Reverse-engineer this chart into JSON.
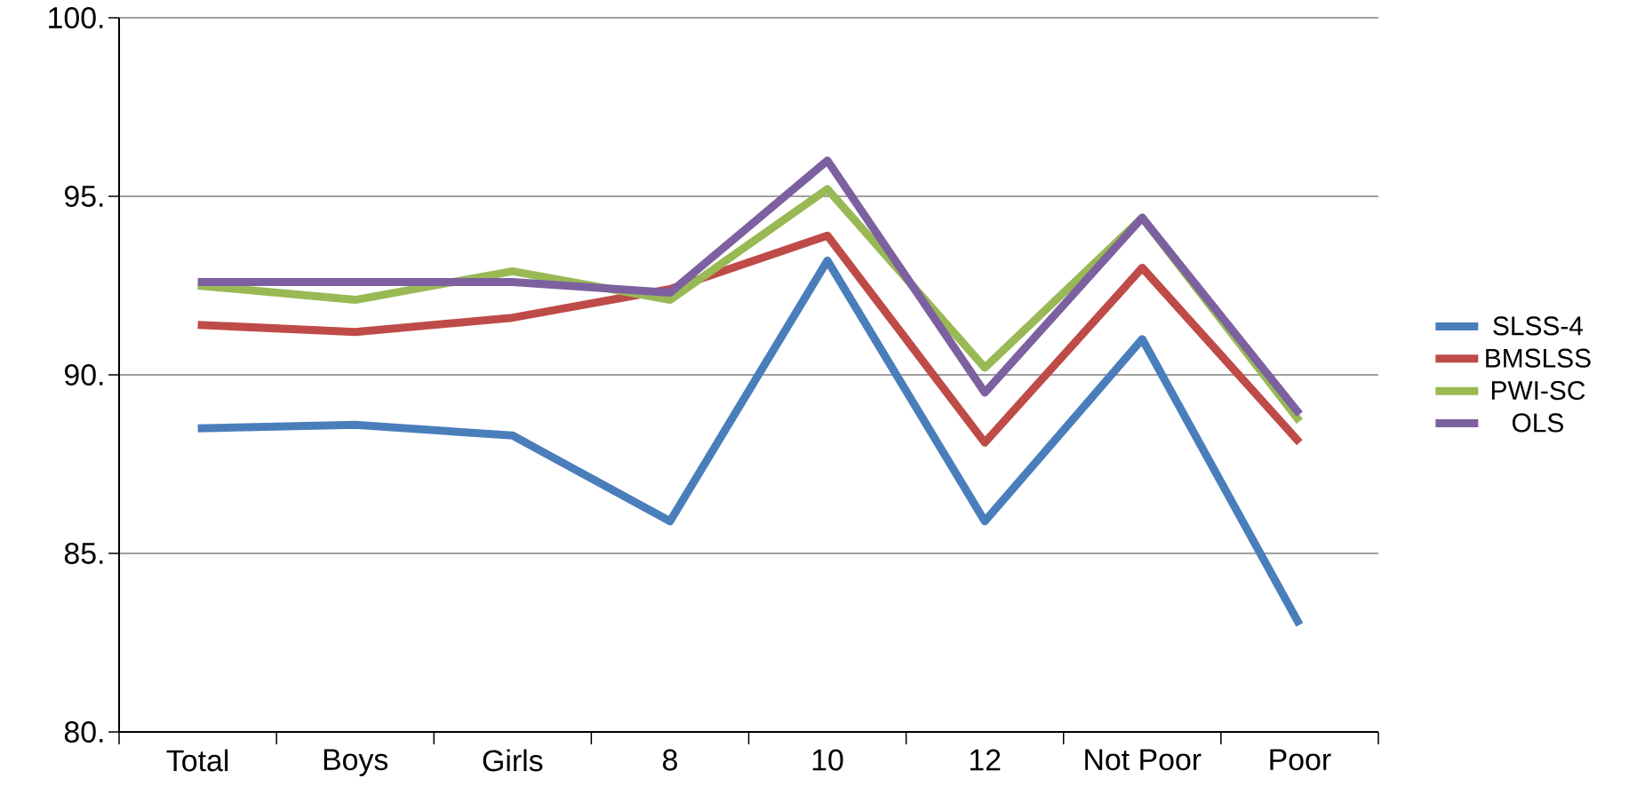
{
  "chart_data": {
    "type": "line",
    "categories": [
      "Total",
      "Boys",
      "Girls",
      "8",
      "10",
      "12",
      "Not Poor",
      "Poor"
    ],
    "series": [
      {
        "name": "SLSS-4",
        "color": "#4a7ebb",
        "values": [
          88.5,
          88.6,
          88.3,
          85.9,
          93.2,
          85.9,
          91.0,
          83.0
        ]
      },
      {
        "name": "BMSLSS",
        "color": "#be4b48",
        "values": [
          91.4,
          91.2,
          91.6,
          92.4,
          93.9,
          88.1,
          93.0,
          88.1
        ]
      },
      {
        "name": "PWI-SC",
        "color": "#98b954",
        "values": [
          92.5,
          92.1,
          92.9,
          92.1,
          95.2,
          90.2,
          94.4,
          88.7
        ]
      },
      {
        "name": "OLS",
        "color": "#7d60a0",
        "values": [
          92.6,
          92.6,
          92.6,
          92.3,
          96.0,
          89.5,
          94.4,
          88.9
        ]
      }
    ],
    "ylim": [
      80,
      100
    ],
    "yticks": [
      {
        "value": 80,
        "label": "80."
      },
      {
        "value": 85,
        "label": "85."
      },
      {
        "value": 90,
        "label": "90."
      },
      {
        "value": 95,
        "label": "95."
      },
      {
        "value": 100,
        "label": "100."
      }
    ],
    "grid": "y",
    "legend": "right",
    "marker": "none",
    "line_style": "solid"
  }
}
